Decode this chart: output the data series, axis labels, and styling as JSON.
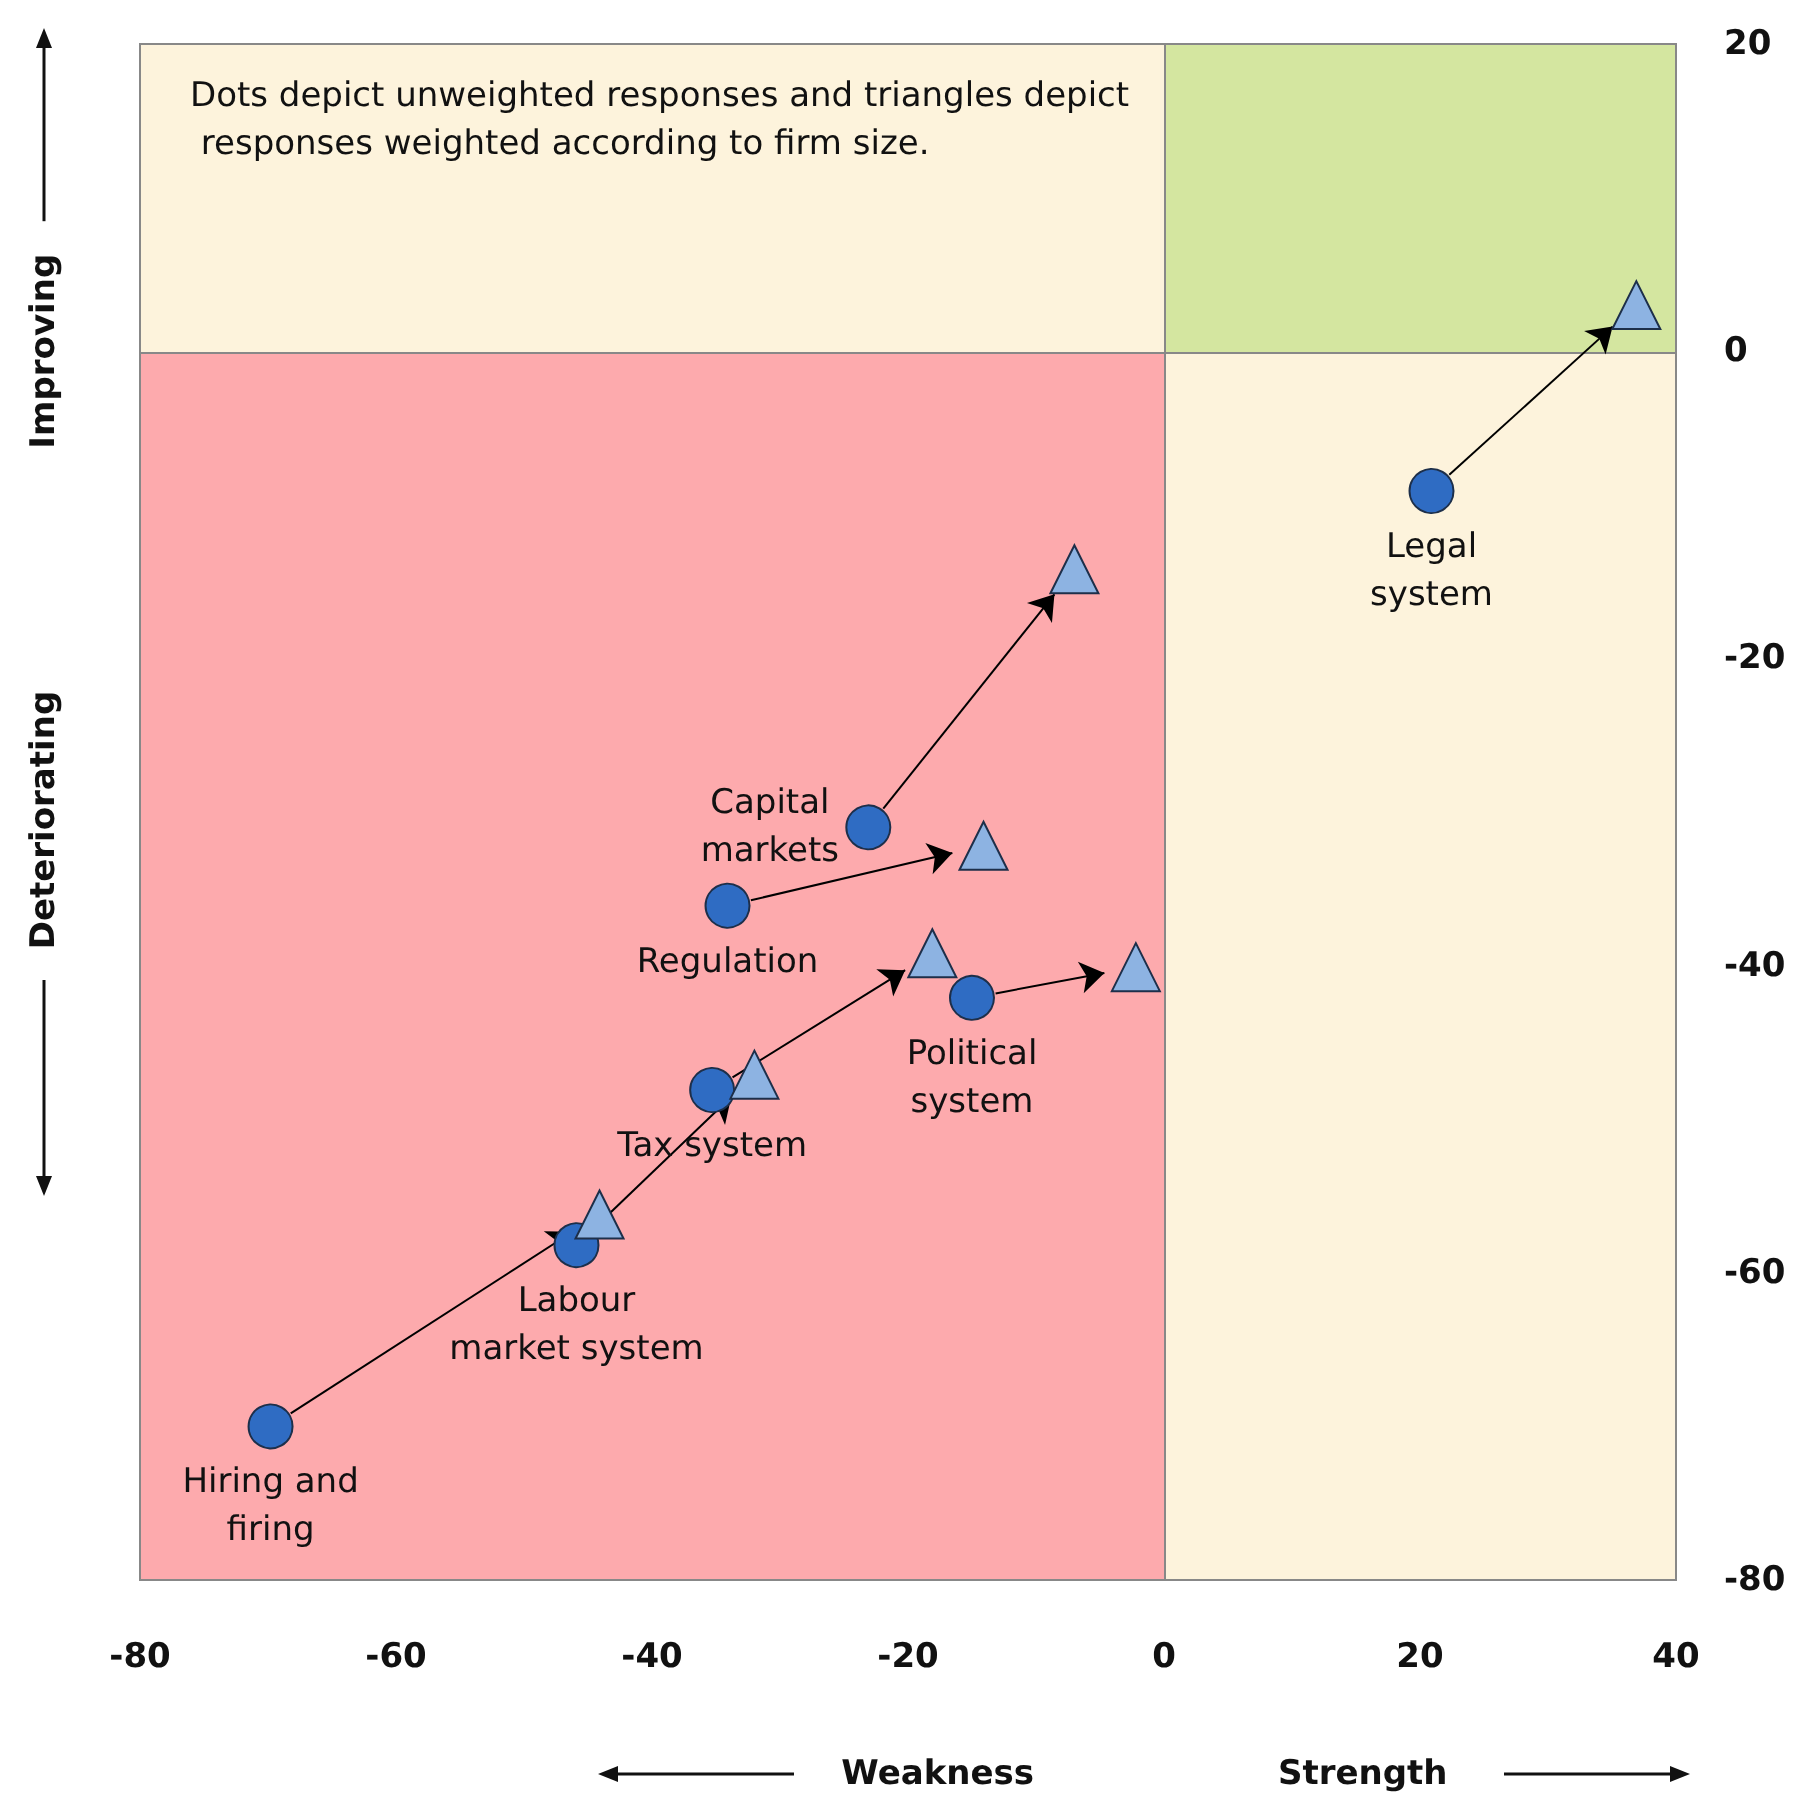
{
  "chart_data": {
    "type": "scatter",
    "xlim": [
      -80,
      40
    ],
    "xticks": [
      -80,
      -60,
      -40,
      -20,
      0,
      20,
      40
    ],
    "ylim": [
      -80,
      20
    ],
    "yticks": [
      -80,
      -60,
      -40,
      -20,
      0,
      20
    ],
    "grid": false,
    "series": [
      {
        "marker": "circle",
        "color": "#2f6cc3",
        "x": [
          20.9,
          -23.1,
          -34.1,
          -15.0,
          -35.3,
          -45.9,
          -69.8
        ],
        "values": [
          -9.1,
          -31.0,
          -36.1,
          -42.1,
          -48.1,
          -58.2,
          -70.0
        ]
      },
      {
        "marker": "triangle",
        "color": "#8db3e2",
        "x": [
          36.9,
          -7.0,
          -14.1,
          -2.2,
          -18.1,
          -32.0,
          -44.1
        ],
        "values": [
          3.0,
          -14.2,
          -32.2,
          -40.1,
          -39.2,
          -47.1,
          -56.2
        ]
      }
    ],
    "annotations": [
      "Dots depict unweighted responses and triangles depict responses weighted according to firm size.",
      "Weakness",
      "Strength",
      "Improving",
      "Deteriorating",
      {
        "text": "Legal\nsystem",
        "x": 20.9,
        "y": -9.1
      },
      {
        "text": "Capital\nmarkets",
        "x": -23.1,
        "y": -31.0
      },
      {
        "text": "Regulation",
        "x": -34.1,
        "y": -36.1
      },
      {
        "text": "Political\nsystem",
        "x": -15.0,
        "y": -42.1
      },
      {
        "text": "Tax system",
        "x": -35.3,
        "y": -48.1
      },
      {
        "text": "Labour\nmarket system",
        "x": -45.9,
        "y": -58.2
      },
      {
        "text": "Hiring and\nfiring",
        "x": -69.8,
        "y": -70.0
      }
    ]
  }
}
